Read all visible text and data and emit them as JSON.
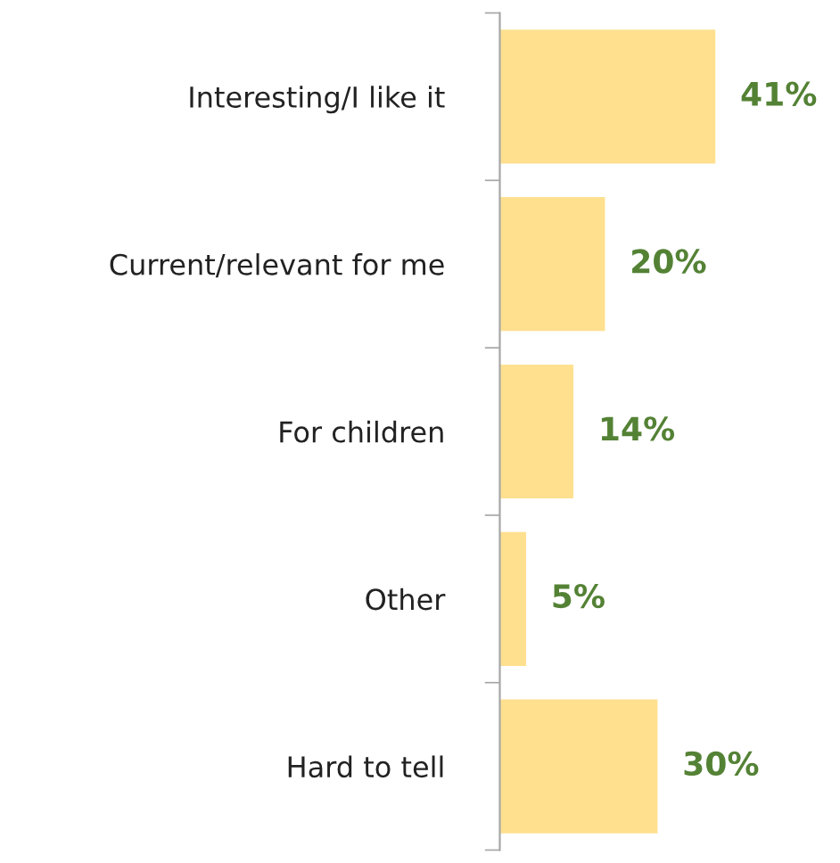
{
  "chart_data": {
    "type": "bar",
    "orientation": "horizontal",
    "categories": [
      "Interesting/I like it",
      "Current/relevant for me",
      "For children",
      "Other",
      "Hard to tell"
    ],
    "values": [
      41,
      20,
      14,
      5,
      30
    ],
    "value_labels": [
      "41%",
      "20%",
      "14%",
      "5%",
      "30%"
    ],
    "color": "#ffe08f",
    "grid": false,
    "legend": false
  }
}
